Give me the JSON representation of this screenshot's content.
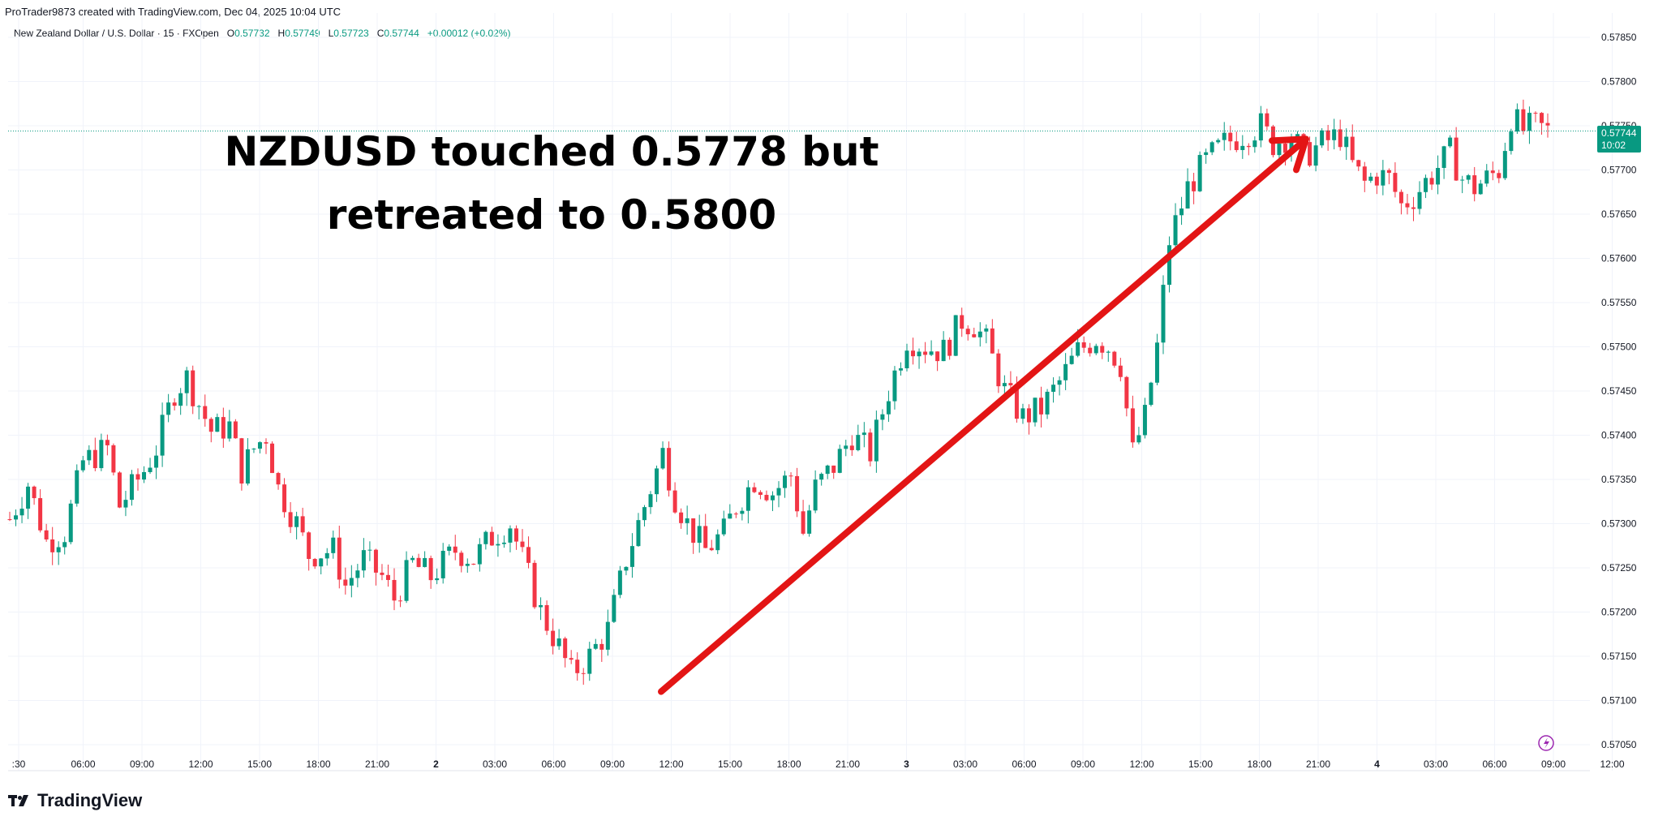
{
  "header": {
    "credit": "ProTrader9873 created with TradingView.com, Dec 04, 2025 10:04 UTC"
  },
  "symbol": {
    "name": "New Zealand Dollar / U.S. Dollar · 15 · FXOpen",
    "o_label": "O",
    "o_value": "0.57732",
    "h_label": "H",
    "h_value": "0.57749",
    "l_label": "L",
    "l_value": "0.57723",
    "c_label": "C",
    "c_value": "0.57744",
    "change": "+0.00012 (+0.02%)"
  },
  "annotation": {
    "line1": "NZDUSD touched 0.5778 but",
    "line2": "retreated to 0.5800"
  },
  "price_badge": {
    "price": "0.57744",
    "countdown": "10:02"
  },
  "footer": {
    "brand": "TradingView"
  },
  "colors": {
    "up": "#089981",
    "down": "#f23645",
    "arrow": "#e31515"
  },
  "chart_data": {
    "type": "candlestick",
    "title": "New Zealand Dollar / U.S. Dollar · 15 · FXOpen",
    "x_tick_labels": [
      ":30",
      "06:00",
      "09:00",
      "12:00",
      "15:00",
      "18:00",
      "21:00",
      "2",
      "03:00",
      "06:00",
      "09:00",
      "12:00",
      "15:00",
      "18:00",
      "21:00",
      "3",
      "03:00",
      "06:00",
      "09:00",
      "12:00",
      "15:00",
      "18:00",
      "21:00",
      "4",
      "03:00",
      "06:00",
      "09:00",
      "12:00"
    ],
    "y_tick_labels": [
      "0.57850",
      "0.57800",
      "0.57750",
      "0.57700",
      "0.57650",
      "0.57600",
      "0.57550",
      "0.57500",
      "0.57450",
      "0.57400",
      "0.57350",
      "0.57300",
      "0.57250",
      "0.57200",
      "0.57150",
      "0.57100",
      "0.57050"
    ],
    "y_range": [
      0.5704,
      0.5786
    ],
    "last_price": 0.57744,
    "price_path": [
      [
        0,
        0.57305
      ],
      [
        3,
        0.57345
      ],
      [
        6,
        0.5728
      ],
      [
        9,
        0.5729
      ],
      [
        12,
        0.5737
      ],
      [
        16,
        0.57385
      ],
      [
        18,
        0.5732
      ],
      [
        22,
        0.5736
      ],
      [
        24,
        0.57385
      ],
      [
        27,
        0.5745
      ],
      [
        29,
        0.57465
      ],
      [
        33,
        0.57405
      ],
      [
        36,
        0.5741
      ],
      [
        38,
        0.5736
      ],
      [
        40,
        0.57385
      ],
      [
        42,
        0.574
      ],
      [
        44,
        0.5734
      ],
      [
        47,
        0.573
      ],
      [
        49,
        0.57265
      ],
      [
        53,
        0.5727
      ],
      [
        55,
        0.5723
      ],
      [
        58,
        0.5726
      ],
      [
        61,
        0.5724
      ],
      [
        63,
        0.57215
      ],
      [
        66,
        0.57255
      ],
      [
        69,
        0.5724
      ],
      [
        73,
        0.5727
      ],
      [
        76,
        0.5726
      ],
      [
        79,
        0.57285
      ],
      [
        82,
        0.573
      ],
      [
        84,
        0.5726
      ],
      [
        87,
        0.572
      ],
      [
        90,
        0.5716
      ],
      [
        92,
        0.5713
      ],
      [
        95,
        0.5715
      ],
      [
        98,
        0.5718
      ],
      [
        101,
        0.5726
      ],
      [
        104,
        0.5732
      ],
      [
        107,
        0.5738
      ],
      [
        109,
        0.5733
      ],
      [
        111,
        0.573
      ],
      [
        114,
        0.5727
      ],
      [
        117,
        0.5729
      ],
      [
        119,
        0.5732
      ],
      [
        122,
        0.5735
      ],
      [
        125,
        0.57335
      ],
      [
        128,
        0.57355
      ],
      [
        130,
        0.5729
      ],
      [
        132,
        0.5734
      ],
      [
        135,
        0.57365
      ],
      [
        138,
        0.574
      ],
      [
        141,
        0.5738
      ],
      [
        144,
        0.5745
      ],
      [
        147,
        0.5751
      ],
      [
        150,
        0.575
      ],
      [
        153,
        0.57495
      ],
      [
        156,
        0.5753
      ],
      [
        158,
        0.57525
      ],
      [
        160,
        0.57505
      ],
      [
        163,
        0.5745
      ],
      [
        166,
        0.5742
      ],
      [
        169,
        0.5743
      ],
      [
        172,
        0.5746
      ],
      [
        175,
        0.57495
      ],
      [
        178,
        0.5751
      ],
      [
        180,
        0.575
      ],
      [
        182,
        0.5748
      ],
      [
        184,
        0.5738
      ],
      [
        186,
        0.5742
      ],
      [
        188,
        0.575
      ],
      [
        190,
        0.5762
      ],
      [
        193,
        0.5768
      ],
      [
        196,
        0.5771
      ],
      [
        199,
        0.5773
      ],
      [
        202,
        0.5774
      ],
      [
        205,
        0.5775
      ],
      [
        207,
        0.5773
      ],
      [
        210,
        0.5774
      ],
      [
        212,
        0.57715
      ],
      [
        215,
        0.5773
      ],
      [
        218,
        0.5774
      ],
      [
        220,
        0.57705
      ],
      [
        222,
        0.57685
      ],
      [
        224,
        0.57695
      ],
      [
        226,
        0.5769
      ],
      [
        228,
        0.5766
      ],
      [
        230,
        0.5767
      ],
      [
        233,
        0.57695
      ],
      [
        236,
        0.5772
      ],
      [
        238,
        0.5769
      ],
      [
        240,
        0.5768
      ],
      [
        242,
        0.5769
      ],
      [
        244,
        0.577
      ],
      [
        246,
        0.5776
      ],
      [
        248,
        0.57745
      ],
      [
        250,
        0.5775
      ],
      [
        252,
        0.57744
      ]
    ],
    "annotations": [
      {
        "type": "arrow",
        "from": {
          "time": "Dec 2 ~12:00",
          "price": 0.5711
        },
        "to": {
          "time": "Dec 3 ~22:00",
          "price": 0.57735
        }
      },
      {
        "type": "text",
        "text": "NZDUSD touched 0.5778 but retreated to 0.5800"
      }
    ]
  }
}
